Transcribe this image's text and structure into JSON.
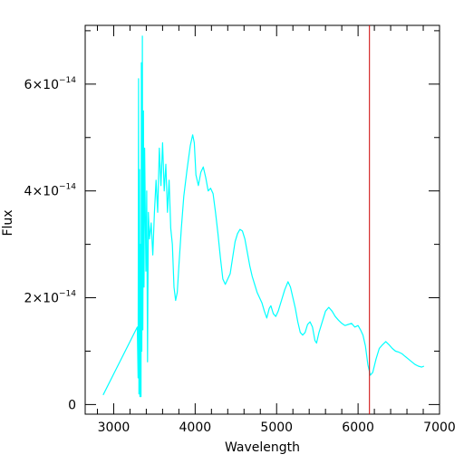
{
  "chart_data": {
    "type": "line",
    "xlabel": "Wavelength",
    "ylabel": "Flux",
    "xlim": [
      2650,
      7000
    ],
    "ylim": [
      -1.8e-15,
      7.1e-14
    ],
    "x_ticks": [
      {
        "value": 3000,
        "label": "3000"
      },
      {
        "value": 4000,
        "label": "4000"
      },
      {
        "value": 5000,
        "label": "5000"
      },
      {
        "value": 6000,
        "label": "6000"
      },
      {
        "value": 7000,
        "label": "7000"
      }
    ],
    "y_ticks": [
      {
        "value": 0,
        "label": "0",
        "exp": ""
      },
      {
        "value": 2e-14,
        "label": "2×10",
        "exp": "−14"
      },
      {
        "value": 4e-14,
        "label": "4×10",
        "exp": "−14"
      },
      {
        "value": 6e-14,
        "label": "6×10",
        "exp": "−14"
      }
    ],
    "x_minor_step": 200,
    "y_minor_step": 1e-14,
    "grid": false,
    "series": [
      {
        "color": "#00ffff",
        "points": [
          [
            2870,
            1.8e-15
          ],
          [
            3290,
            1.45e-14
          ],
          [
            3300,
            5e-15
          ],
          [
            3305,
            6.1e-14
          ],
          [
            3310,
            2e-15
          ],
          [
            3318,
            4.4e-14
          ],
          [
            3322,
            1.5e-15
          ],
          [
            3330,
            3e-14
          ],
          [
            3335,
            1.5e-15
          ],
          [
            3340,
            6.4e-14
          ],
          [
            3345,
            1e-14
          ],
          [
            3352,
            6.9e-14
          ],
          [
            3358,
            1.4e-14
          ],
          [
            3365,
            5.5e-14
          ],
          [
            3372,
            2.2e-14
          ],
          [
            3380,
            4.8e-14
          ],
          [
            3395,
            2.5e-14
          ],
          [
            3405,
            4e-14
          ],
          [
            3415,
            8e-15
          ],
          [
            3425,
            3.6e-14
          ],
          [
            3440,
            3.1e-14
          ],
          [
            3460,
            3.4e-14
          ],
          [
            3480,
            2.8e-14
          ],
          [
            3500,
            3.6e-14
          ],
          [
            3520,
            4.2e-14
          ],
          [
            3540,
            3.6e-14
          ],
          [
            3560,
            4.8e-14
          ],
          [
            3580,
            4.1e-14
          ],
          [
            3600,
            4.9e-14
          ],
          [
            3620,
            4e-14
          ],
          [
            3640,
            4.5e-14
          ],
          [
            3660,
            3.6e-14
          ],
          [
            3680,
            4.2e-14
          ],
          [
            3700,
            3.3e-14
          ],
          [
            3720,
            3e-14
          ],
          [
            3740,
            2.2e-14
          ],
          [
            3760,
            1.95e-14
          ],
          [
            3780,
            2.1e-14
          ],
          [
            3800,
            2.6e-14
          ],
          [
            3830,
            3.3e-14
          ],
          [
            3860,
            3.9e-14
          ],
          [
            3900,
            4.4e-14
          ],
          [
            3940,
            4.85e-14
          ],
          [
            3970,
            5.05e-14
          ],
          [
            3990,
            4.9e-14
          ],
          [
            4010,
            4.3e-14
          ],
          [
            4040,
            4.1e-14
          ],
          [
            4070,
            4.35e-14
          ],
          [
            4100,
            4.45e-14
          ],
          [
            4130,
            4.25e-14
          ],
          [
            4160,
            4e-14
          ],
          [
            4190,
            4.05e-14
          ],
          [
            4220,
            3.95e-14
          ],
          [
            4250,
            3.6e-14
          ],
          [
            4280,
            3.2e-14
          ],
          [
            4310,
            2.75e-14
          ],
          [
            4340,
            2.35e-14
          ],
          [
            4370,
            2.25e-14
          ],
          [
            4400,
            2.35e-14
          ],
          [
            4430,
            2.45e-14
          ],
          [
            4460,
            2.75e-14
          ],
          [
            4490,
            3.05e-14
          ],
          [
            4520,
            3.2e-14
          ],
          [
            4550,
            3.28e-14
          ],
          [
            4580,
            3.25e-14
          ],
          [
            4610,
            3.1e-14
          ],
          [
            4640,
            2.85e-14
          ],
          [
            4670,
            2.6e-14
          ],
          [
            4700,
            2.4e-14
          ],
          [
            4730,
            2.25e-14
          ],
          [
            4760,
            2.1e-14
          ],
          [
            4790,
            2e-14
          ],
          [
            4820,
            1.9e-14
          ],
          [
            4850,
            1.75e-14
          ],
          [
            4880,
            1.62e-14
          ],
          [
            4910,
            1.8e-14
          ],
          [
            4930,
            1.85e-14
          ],
          [
            4960,
            1.7e-14
          ],
          [
            4990,
            1.65e-14
          ],
          [
            5020,
            1.75e-14
          ],
          [
            5060,
            1.95e-14
          ],
          [
            5100,
            2.15e-14
          ],
          [
            5140,
            2.3e-14
          ],
          [
            5170,
            2.2e-14
          ],
          [
            5200,
            2e-14
          ],
          [
            5230,
            1.8e-14
          ],
          [
            5260,
            1.55e-14
          ],
          [
            5290,
            1.35e-14
          ],
          [
            5320,
            1.3e-14
          ],
          [
            5350,
            1.35e-14
          ],
          [
            5380,
            1.5e-14
          ],
          [
            5410,
            1.55e-14
          ],
          [
            5440,
            1.45e-14
          ],
          [
            5470,
            1.2e-14
          ],
          [
            5490,
            1.15e-14
          ],
          [
            5520,
            1.35e-14
          ],
          [
            5560,
            1.55e-14
          ],
          [
            5600,
            1.75e-14
          ],
          [
            5640,
            1.82e-14
          ],
          [
            5680,
            1.75e-14
          ],
          [
            5720,
            1.65e-14
          ],
          [
            5760,
            1.58e-14
          ],
          [
            5800,
            1.52e-14
          ],
          [
            5840,
            1.48e-14
          ],
          [
            5880,
            1.5e-14
          ],
          [
            5920,
            1.52e-14
          ],
          [
            5960,
            1.45e-14
          ],
          [
            6000,
            1.48e-14
          ],
          [
            6030,
            1.4e-14
          ],
          [
            6060,
            1.3e-14
          ],
          [
            6090,
            1.1e-14
          ],
          [
            6120,
            7.5e-15
          ],
          [
            6150,
            5.5e-15
          ],
          [
            6180,
            6e-15
          ],
          [
            6220,
            8.5e-15
          ],
          [
            6260,
            1.05e-14
          ],
          [
            6300,
            1.12e-14
          ],
          [
            6340,
            1.18e-14
          ],
          [
            6380,
            1.12e-14
          ],
          [
            6420,
            1.05e-14
          ],
          [
            6460,
            1e-14
          ],
          [
            6500,
            9.8e-15
          ],
          [
            6540,
            9.5e-15
          ],
          [
            6580,
            9e-15
          ],
          [
            6620,
            8.5e-15
          ],
          [
            6660,
            8e-15
          ],
          [
            6700,
            7.5e-15
          ],
          [
            6740,
            7.2e-15
          ],
          [
            6780,
            7e-15
          ],
          [
            6810,
            7.2e-15
          ]
        ]
      }
    ],
    "vlines": [
      {
        "x": 6140,
        "color": "#cc0000"
      }
    ]
  }
}
